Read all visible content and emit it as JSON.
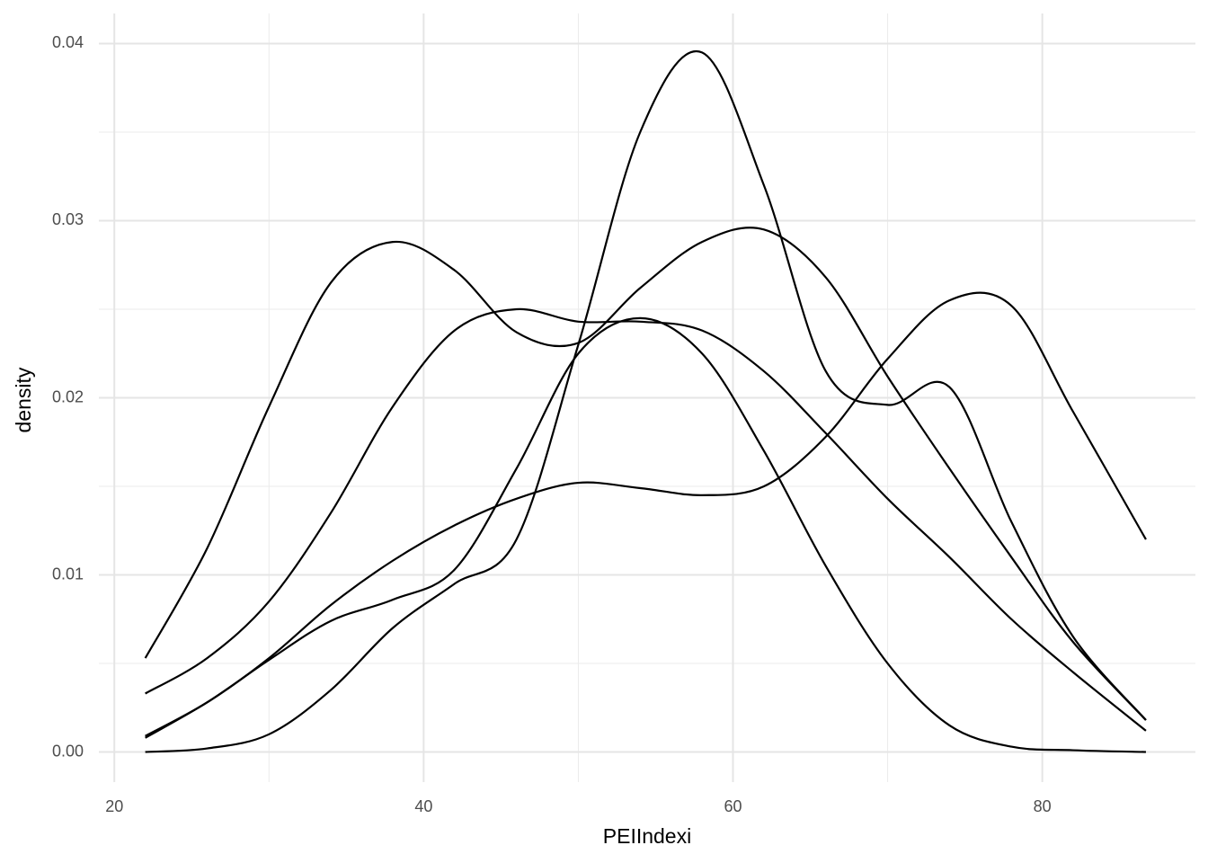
{
  "chart_data": {
    "type": "line",
    "x_label": "PEIIndexi",
    "y_label": "density",
    "x": [
      22,
      26,
      30,
      34,
      38,
      42,
      46,
      50,
      54,
      58,
      62,
      66,
      70,
      74,
      78,
      82,
      86.7
    ],
    "series": [
      {
        "color": "#000000",
        "values": [
          0,
          0.0002,
          0.001,
          0.0035,
          0.007,
          0.0095,
          0.012,
          0.023,
          0.035,
          0.0395,
          0.032,
          0.0215,
          0.0196,
          0.0206,
          0.013,
          0.0065,
          0.0018
        ]
      },
      {
        "color": "#000000",
        "values": [
          0.0008,
          0.0028,
          0.0052,
          0.0074,
          0.0086,
          0.0103,
          0.016,
          0.0225,
          0.0245,
          0.0225,
          0.017,
          0.0105,
          0.005,
          0.0015,
          0.0003,
          0.0001,
          0
        ]
      },
      {
        "color": "#000000",
        "values": [
          0.0033,
          0.0053,
          0.0085,
          0.0135,
          0.0195,
          0.0238,
          0.025,
          0.0243,
          0.0243,
          0.0238,
          0.0215,
          0.018,
          0.0143,
          0.011,
          0.0075,
          0.0045,
          0.0012
        ]
      },
      {
        "color": "#000000",
        "values": [
          0.0053,
          0.0115,
          0.0195,
          0.0265,
          0.0288,
          0.0272,
          0.0237,
          0.0231,
          0.0262,
          0.0288,
          0.0295,
          0.0268,
          0.0212,
          0.016,
          0.011,
          0.0062,
          0.0018
        ]
      },
      {
        "color": "#000000",
        "values": [
          0.0009,
          0.0028,
          0.0053,
          0.0083,
          0.0108,
          0.0128,
          0.0143,
          0.0152,
          0.0149,
          0.0145,
          0.015,
          0.0178,
          0.0222,
          0.0255,
          0.0252,
          0.0192,
          0.012
        ]
      }
    ],
    "xlim": [
      19.0,
      89.9
    ],
    "ylim": [
      -0.0017,
      0.0417
    ],
    "xticks": [
      20,
      40,
      60,
      80
    ],
    "yticks": [
      {
        "value": 0,
        "label": "0.00"
      },
      0.01,
      0.02,
      0.03,
      0.04
    ],
    "minor_xticks": [
      30,
      50,
      70
    ],
    "minor_yticks": [
      0.005,
      0.015,
      0.025,
      0.035
    ],
    "grid": true
  }
}
